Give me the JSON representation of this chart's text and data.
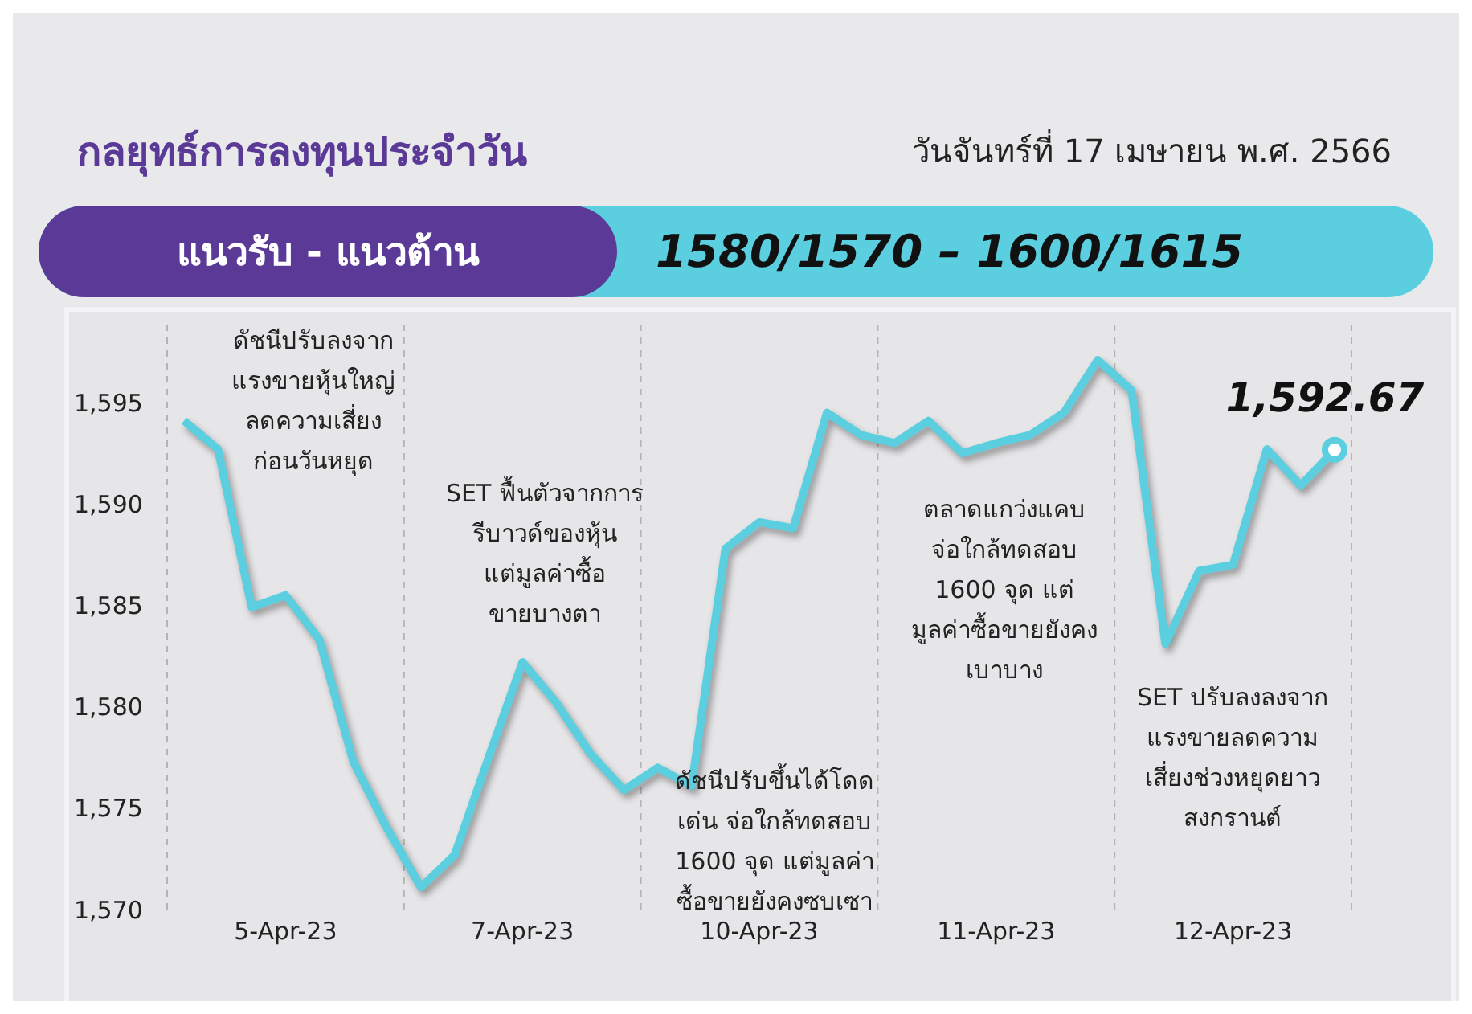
{
  "chart_data": {
    "type": "line",
    "title": "กลยุทธ์การลงทุนประจำวัน",
    "subtitle": "วันจันทร์ที่ 17 เมษายน พ.ศ. 2566",
    "annotations": [
      "แนวรับ - แนวต้าน",
      "1580/1570 – 1600/1615",
      "ดัชนีปรับลงจาก\nแรงขายหุ้นใหญ่\nลดความเสี่ยง\nก่อนวันหยุด",
      "SET ฟื้นตัวจากการ\nรีบาวด์ของหุ้น\nแต่มูลค่าซื้อ\nขายบางตา",
      "ดัชนีปรับขึ้นได้โดด\nเด่น จ่อใกล้ทดสอบ\n1600 จุด แต่มูลค่า\nซื้อขายยังคงซบเซา",
      "ตลาดแกว่งแคบ\nจ่อใกล้ทดสอบ\n1600 จุด แต่\nมูลค่าซื้อขายยังคง\nเบาบาง",
      "SET ปรับลงลงจาก\nแรงขายลดความ\nเสี่ยงช่วงหยุดยาว\nสงกรานต์",
      {
        "text": "1,592.67",
        "y": 1592.67
      }
    ],
    "categories": [
      null,
      null,
      null,
      "5-Apr-23",
      null,
      null,
      null,
      null,
      null,
      null,
      "7-Apr-23",
      null,
      null,
      null,
      null,
      null,
      null,
      "10-Apr-23",
      null,
      null,
      null,
      null,
      null,
      null,
      "11-Apr-23",
      null,
      null,
      null,
      null,
      null,
      null,
      "12-Apr-23",
      null,
      null,
      null
    ],
    "series": [
      {
        "color": "#5bcfdf",
        "values": [
          1594.1,
          1592.7,
          1584.9,
          1585.5,
          1583.3,
          1577.3,
          1574.0,
          1571.1,
          1572.7,
          1577.5,
          1582.2,
          1580.2,
          1577.7,
          1575.9,
          1577.0,
          1576.1,
          1587.8,
          1589.1,
          1588.8,
          1594.5,
          1593.4,
          1593.0,
          1594.1,
          1592.5,
          1593.0,
          1593.4,
          1594.5,
          1597.1,
          1595.6,
          1583.1,
          1586.7,
          1587.0,
          1592.7,
          1590.9,
          1592.67
        ]
      }
    ],
    "ylim": [
      1570,
      1599
    ],
    "yticks": [
      {
        "value": 1570,
        "label": "1,570"
      },
      {
        "value": 1575,
        "label": "1,575"
      },
      {
        "value": 1580,
        "label": "1,580"
      },
      {
        "value": 1585,
        "label": "1,585"
      },
      {
        "value": 1590,
        "label": "1,590"
      },
      {
        "value": 1595,
        "label": "1,595"
      }
    ],
    "grid": false,
    "legend": false,
    "marker": "none",
    "line_style": "solid"
  }
}
